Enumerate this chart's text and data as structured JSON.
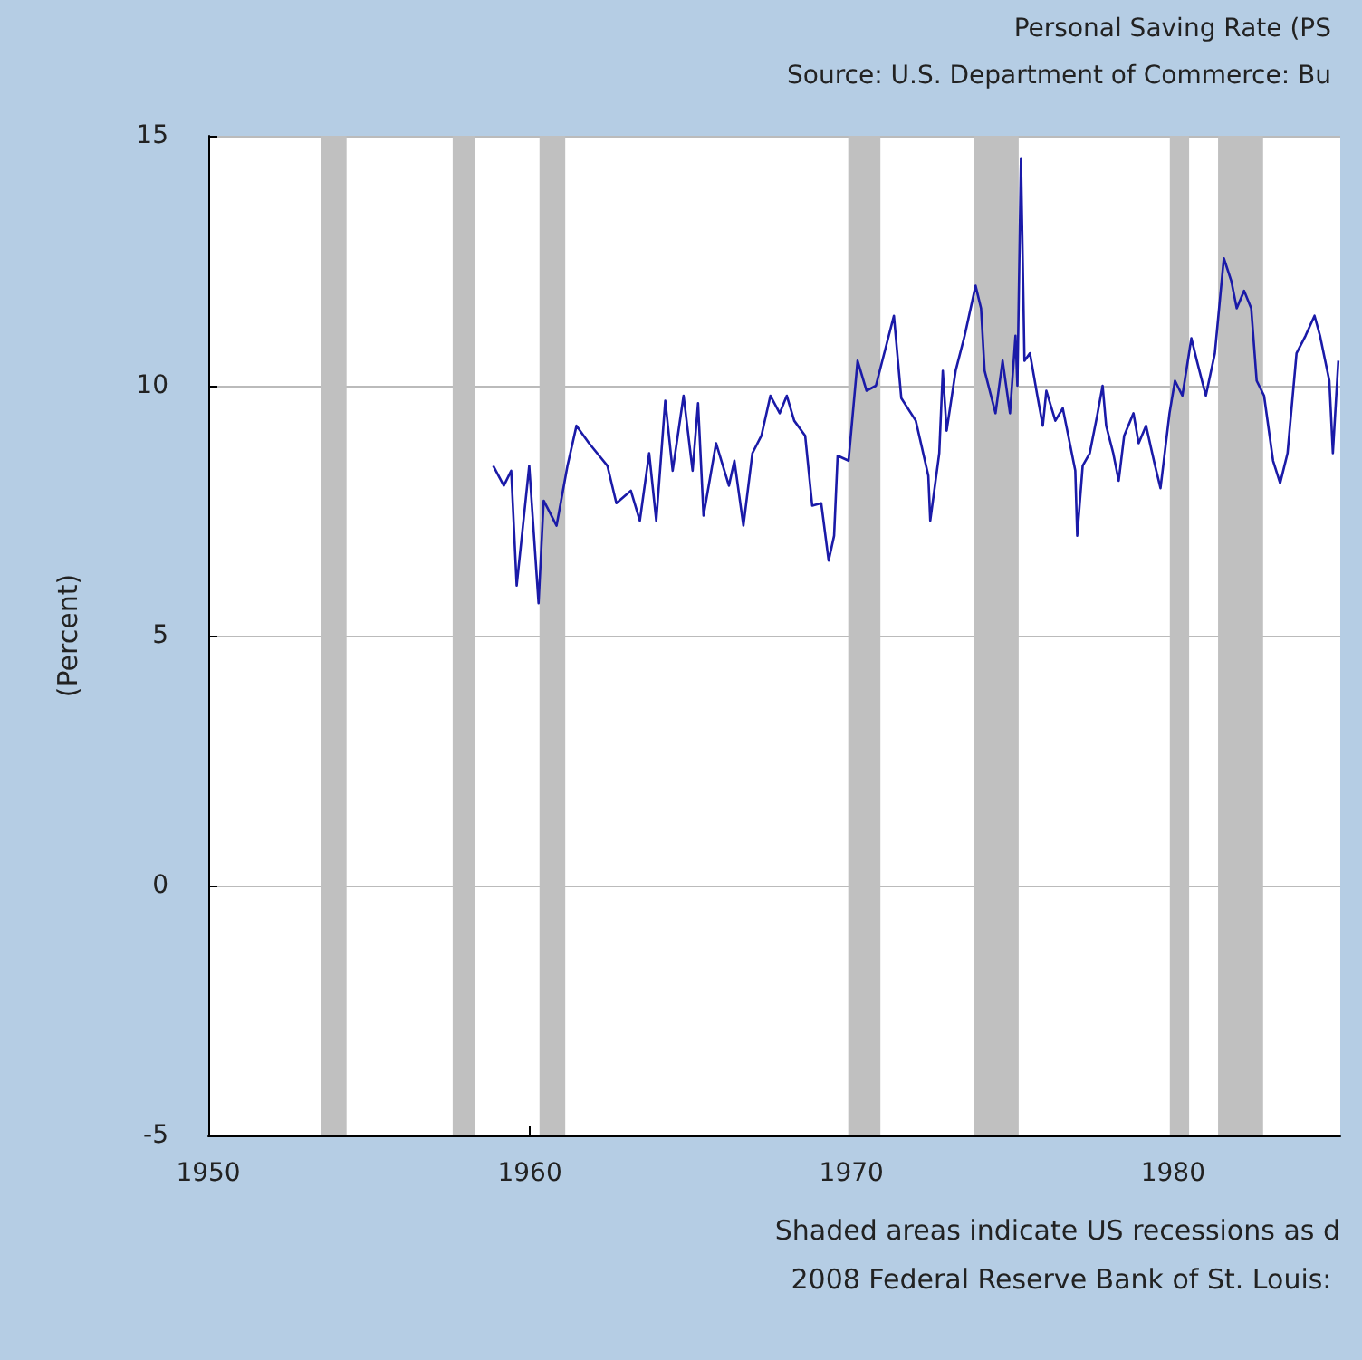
{
  "chart_data": {
    "type": "line",
    "title": "Personal Saving Rate (PS",
    "subtitle": "Source: U.S. Department of Commerce: Bu",
    "ylabel": "(Percent)",
    "annotations": [
      "Shaded areas indicate US recessions as d",
      "2008 Federal Reserve Bank of St. Louis: "
    ],
    "xlim": [
      1950,
      1985.2
    ],
    "xticks": [
      1950,
      1960,
      1970,
      1980
    ],
    "ylim": [
      -5,
      15
    ],
    "yticks": [
      -5,
      0,
      5,
      10,
      15
    ],
    "grid": "y",
    "marker": "none",
    "line_style": "solid",
    "bands": [
      {
        "axis": "x",
        "from": 1953.5,
        "to": 1954.3,
        "color": "#c0c0c0"
      },
      {
        "axis": "x",
        "from": 1957.6,
        "to": 1958.3,
        "color": "#c0c0c0"
      },
      {
        "axis": "x",
        "from": 1960.3,
        "to": 1961.1,
        "color": "#c0c0c0"
      },
      {
        "axis": "x",
        "from": 1969.9,
        "to": 1970.9,
        "color": "#c0c0c0"
      },
      {
        "axis": "x",
        "from": 1973.8,
        "to": 1975.2,
        "color": "#c0c0c0"
      },
      {
        "axis": "x",
        "from": 1979.9,
        "to": 1980.5,
        "color": "#c0c0c0"
      },
      {
        "axis": "x",
        "from": 1981.4,
        "to": 1982.8,
        "color": "#c0c0c0"
      }
    ],
    "series": [
      {
        "color": "#1a1aa8",
        "x": [
          1958.86,
          1959.19,
          1959.42,
          1959.59,
          1959.98,
          1960.27,
          1960.43,
          1960.83,
          1961.17,
          1961.45,
          1961.84,
          1962.41,
          1962.69,
          1963.14,
          1963.42,
          1963.71,
          1963.93,
          1964.21,
          1964.44,
          1964.78,
          1965.06,
          1965.23,
          1965.4,
          1965.79,
          1966.19,
          1966.36,
          1966.64,
          1966.92,
          1967.2,
          1967.48,
          1967.77,
          1967.99,
          1968.22,
          1968.56,
          1968.78,
          1969.06,
          1969.29,
          1969.46,
          1969.57,
          1969.91,
          1970.19,
          1970.47,
          1970.76,
          1971.32,
          1971.55,
          1972.0,
          1972.39,
          1972.45,
          1972.73,
          1972.84,
          1972.96,
          1973.24,
          1973.52,
          1973.86,
          1974.03,
          1974.14,
          1974.48,
          1974.7,
          1974.93,
          1975.1,
          1975.16,
          1975.27,
          1975.38,
          1975.55,
          1975.78,
          1975.95,
          1976.06,
          1976.34,
          1976.57,
          1976.79,
          1976.96,
          1977.02,
          1977.19,
          1977.41,
          1977.64,
          1977.81,
          1977.92,
          1978.14,
          1978.31,
          1978.48,
          1978.77,
          1978.93,
          1979.16,
          1979.44,
          1979.61,
          1979.89,
          1980.06,
          1980.29,
          1980.57,
          1980.74,
          1981.02,
          1981.3,
          1981.58,
          1981.81,
          1981.98,
          1982.21,
          1982.43,
          1982.6,
          1982.83,
          1983.11,
          1983.33,
          1983.56,
          1983.84,
          1984.12,
          1984.4,
          1984.57,
          1984.86,
          1984.97,
          1985.14
        ],
        "values": [
          8.4,
          8.0,
          8.3,
          6.0,
          8.4,
          5.65,
          7.7,
          7.2,
          8.4,
          9.2,
          8.85,
          8.4,
          7.65,
          7.9,
          7.3,
          8.65,
          7.3,
          9.7,
          8.3,
          9.8,
          8.3,
          9.65,
          7.4,
          8.85,
          8.0,
          8.5,
          7.2,
          8.65,
          9.0,
          9.8,
          9.45,
          9.8,
          9.3,
          9.0,
          7.6,
          7.65,
          6.5,
          7.0,
          8.6,
          8.5,
          10.5,
          9.9,
          10.0,
          11.4,
          9.75,
          9.3,
          8.2,
          7.3,
          8.65,
          10.3,
          9.1,
          10.3,
          11.0,
          12.0,
          11.55,
          10.3,
          9.45,
          10.5,
          9.45,
          11.0,
          10.0,
          14.55,
          10.5,
          10.65,
          9.8,
          9.2,
          9.9,
          9.3,
          9.55,
          8.85,
          8.3,
          7.0,
          8.4,
          8.65,
          9.4,
          10.0,
          9.2,
          8.65,
          8.1,
          9.0,
          9.45,
          8.85,
          9.2,
          8.4,
          7.95,
          9.45,
          10.1,
          9.8,
          10.95,
          10.5,
          9.8,
          10.65,
          12.55,
          12.1,
          11.55,
          11.9,
          11.55,
          10.1,
          9.8,
          8.5,
          8.05,
          8.65,
          10.65,
          11.0,
          11.4,
          11.0,
          10.1,
          8.65,
          10.5
        ]
      }
    ]
  }
}
